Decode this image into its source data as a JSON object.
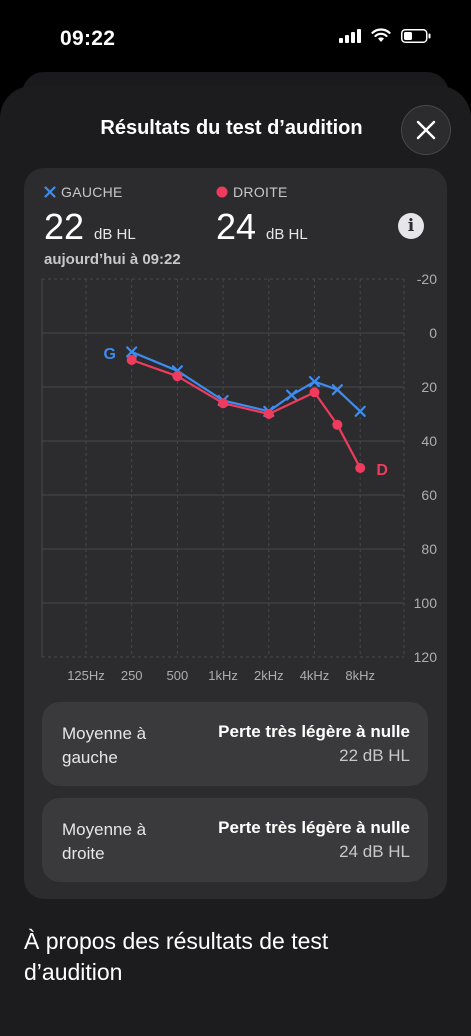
{
  "status_bar": {
    "time": "09:22"
  },
  "sheet": {
    "title": "Résultats du test d’audition"
  },
  "legend": {
    "left": {
      "label": "GAUCHE",
      "value": "22",
      "unit": "dB HL",
      "color": "#3d8cf0"
    },
    "right": {
      "label": "DROITE",
      "value": "24",
      "unit": "dB HL",
      "color": "#ef3b5e"
    },
    "date": "aujourd’hui à 09:22"
  },
  "chart_data": {
    "type": "line",
    "x_tick_labels": [
      "125Hz",
      "250",
      "500",
      "1kHz",
      "2kHz",
      "4kHz",
      "8kHz"
    ],
    "y_tick_labels": [
      "-20",
      "0",
      "20",
      "40",
      "60",
      "80",
      "100",
      "120"
    ],
    "ylim": [
      -20,
      120
    ],
    "y_inverted": true,
    "series": [
      {
        "name": "G",
        "marker": "x",
        "color": "#3d8cf0",
        "x_index": [
          1,
          2,
          3,
          4,
          4.5,
          5,
          5.5,
          6
        ],
        "values": [
          7,
          14,
          25,
          29,
          23,
          18,
          21,
          29
        ]
      },
      {
        "name": "D",
        "marker": "dot",
        "color": "#ef3b5e",
        "x_index": [
          1,
          2,
          3,
          4,
          5,
          5.5,
          6
        ],
        "values": [
          10,
          16,
          26,
          30,
          22,
          34,
          50
        ]
      }
    ]
  },
  "stats": [
    {
      "label": "Moyenne à gauche",
      "title": "Perte très légère à nulle",
      "value": "22 dB HL"
    },
    {
      "label": "Moyenne à droite",
      "title": "Perte très légère à nulle",
      "value": "24 dB HL"
    }
  ],
  "about": {
    "title": "À propos des résultats de test d’audition"
  }
}
